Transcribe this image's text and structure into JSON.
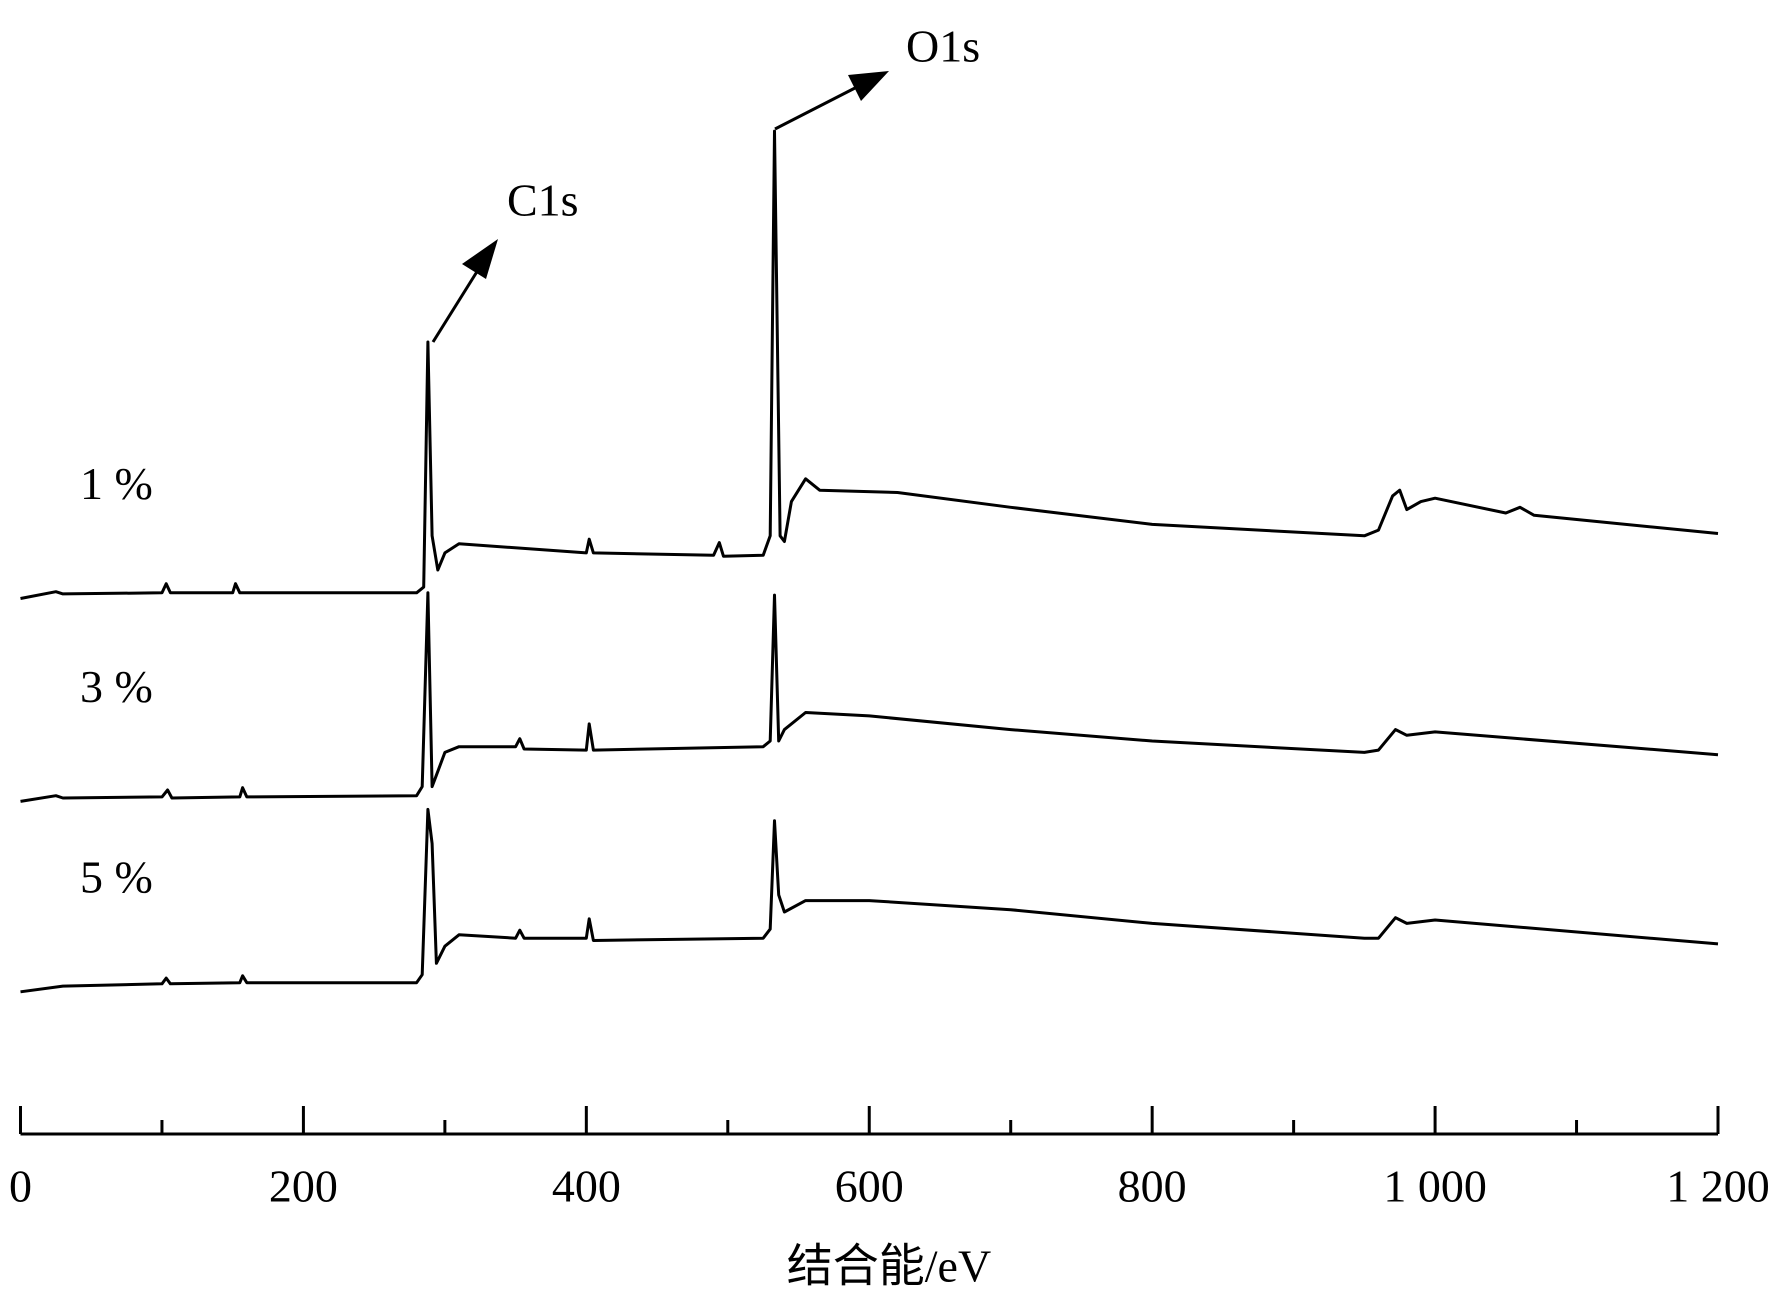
{
  "chart_data": {
    "type": "line",
    "xlabel": "结合能/eV",
    "xlim": [
      0,
      1200
    ],
    "ylim": [
      0,
      100
    ],
    "xticks": [
      0,
      200,
      400,
      600,
      800,
      {
        "value": 1000,
        "label": "1 000"
      },
      {
        "value": 1200,
        "label": "1 200"
      }
    ],
    "xminorticks": [
      100,
      300,
      500,
      700,
      900,
      1100
    ],
    "annotations": [
      "C1s",
      "O1s"
    ],
    "series": [
      {
        "name": "1 %",
        "color": "#000000",
        "x": [
          0,
          25,
          30,
          100,
          103,
          106,
          150,
          152,
          155,
          280,
          285,
          288,
          291,
          295,
          300,
          310,
          400,
          402,
          405,
          490,
          494,
          497,
          525,
          530,
          533,
          537,
          540,
          545,
          555,
          565,
          620,
          700,
          800,
          950,
          960,
          970,
          975,
          980,
          990,
          1000,
          1050,
          1060,
          1070,
          1200
        ],
        "values": [
          46.5,
          47.1,
          46.9,
          47,
          47.8,
          47,
          47,
          47.8,
          47,
          47,
          47.5,
          69,
          52,
          49,
          50.5,
          51.3,
          50.5,
          51.7,
          50.5,
          50.3,
          51.4,
          50.2,
          50.3,
          52,
          87.5,
          52,
          51.5,
          55,
          57,
          56,
          55.8,
          54.5,
          53,
          52,
          52.5,
          55.5,
          56,
          54.3,
          55,
          55.3,
          54,
          54.5,
          53.8,
          52.2
        ]
      },
      {
        "name": "3 %",
        "color": "#000000",
        "x": [
          0,
          25,
          30,
          100,
          104,
          107,
          155,
          157,
          160,
          280,
          284,
          288,
          291,
          294,
          300,
          310,
          350,
          353,
          356,
          400,
          402,
          405,
          525,
          530,
          533,
          536,
          540,
          555,
          600,
          700,
          800,
          950,
          960,
          972,
          980,
          1000,
          1200
        ],
        "values": [
          28.7,
          29.2,
          29,
          29.1,
          29.7,
          29,
          29.1,
          29.9,
          29.1,
          29.2,
          30,
          47,
          30,
          31,
          33,
          33.5,
          33.5,
          34.2,
          33.3,
          33.2,
          35.5,
          33.2,
          33.5,
          34,
          46.8,
          34,
          35,
          36.5,
          36.2,
          35,
          34,
          33,
          33.2,
          35,
          34.5,
          34.8,
          32.8
        ]
      },
      {
        "name": "5 %",
        "color": "#000000",
        "x": [
          0,
          30,
          100,
          103,
          106,
          155,
          157,
          160,
          280,
          284,
          288,
          291,
          294,
          300,
          310,
          350,
          353,
          356,
          400,
          402,
          405,
          525,
          530,
          533,
          536,
          540,
          555,
          600,
          700,
          800,
          950,
          960,
          972,
          980,
          1000,
          1200
        ],
        "values": [
          12,
          12.5,
          12.7,
          13.2,
          12.7,
          12.8,
          13.4,
          12.8,
          12.8,
          13.5,
          28,
          25,
          14.5,
          16,
          17,
          16.7,
          17.4,
          16.7,
          16.7,
          18.4,
          16.5,
          16.7,
          17.5,
          27,
          20.5,
          19,
          20,
          20,
          19.2,
          18,
          16.7,
          16.7,
          18.5,
          18,
          18.3,
          16.2
        ]
      }
    ]
  }
}
